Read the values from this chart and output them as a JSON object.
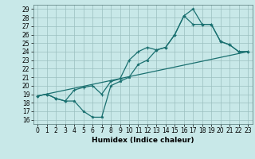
{
  "title": "",
  "xlabel": "Humidex (Indice chaleur)",
  "bg_color": "#c8e8e8",
  "line_color": "#1a7070",
  "xlim": [
    -0.5,
    23.5
  ],
  "ylim": [
    15.5,
    29.5
  ],
  "xticks": [
    0,
    1,
    2,
    3,
    4,
    5,
    6,
    7,
    8,
    9,
    10,
    11,
    12,
    13,
    14,
    15,
    16,
    17,
    18,
    19,
    20,
    21,
    22,
    23
  ],
  "yticks": [
    16,
    17,
    18,
    19,
    20,
    21,
    22,
    23,
    24,
    25,
    26,
    27,
    28,
    29
  ],
  "line1_x": [
    0,
    1,
    2,
    3,
    4,
    5,
    6,
    7,
    8,
    9,
    10,
    11,
    12,
    13,
    14,
    15,
    16,
    17,
    18,
    19,
    20,
    21,
    22,
    23
  ],
  "line1_y": [
    18.8,
    19.0,
    18.5,
    18.2,
    18.2,
    17.0,
    16.3,
    16.3,
    20.0,
    20.5,
    21.0,
    22.5,
    23.0,
    24.2,
    24.5,
    26.0,
    28.2,
    29.0,
    27.2,
    27.2,
    25.2,
    24.8,
    24.0,
    24.0
  ],
  "line2_x": [
    0,
    1,
    2,
    3,
    4,
    5,
    6,
    7,
    8,
    9,
    10,
    11,
    12,
    13,
    14,
    15,
    16,
    17,
    18,
    19,
    20,
    21,
    22,
    23
  ],
  "line2_y": [
    18.8,
    19.0,
    18.5,
    18.2,
    19.5,
    19.8,
    20.0,
    19.0,
    20.5,
    20.8,
    23.0,
    24.0,
    24.5,
    24.2,
    24.5,
    26.0,
    28.2,
    27.2,
    27.2,
    27.2,
    25.2,
    24.8,
    24.0,
    24.0
  ],
  "line3_x": [
    0,
    23
  ],
  "line3_y": [
    18.8,
    24.0
  ],
  "grid_color": "#9bbfbf",
  "tick_fontsize": 5.5,
  "xlabel_fontsize": 6.5
}
